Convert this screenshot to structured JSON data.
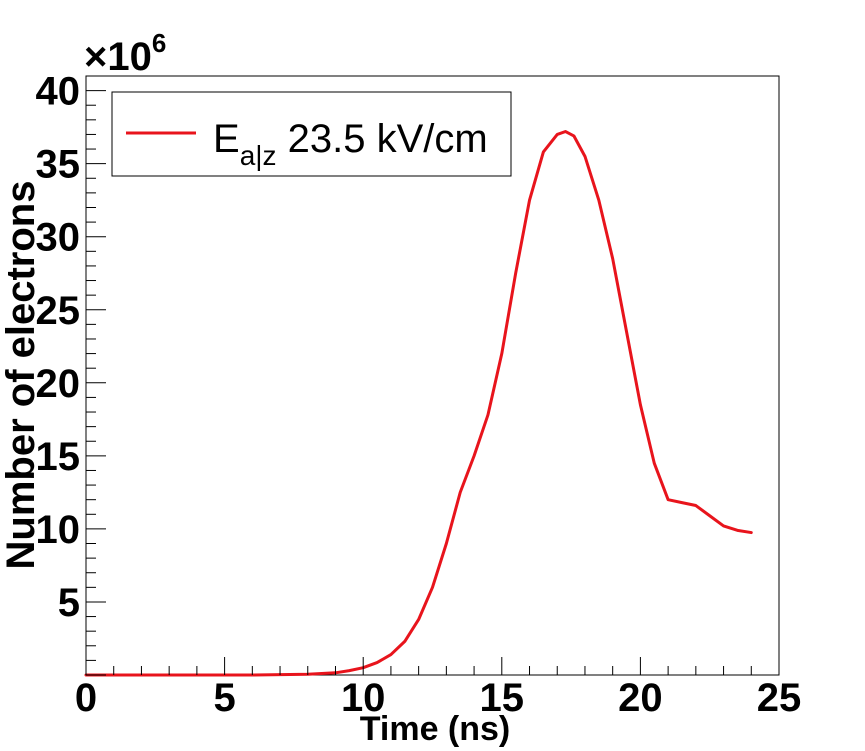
{
  "chart_data": {
    "type": "line",
    "xlabel": "Time (ns)",
    "ylabel": "Number of electrons",
    "y_multiplier": {
      "prefix": "×10",
      "exponent": "6"
    },
    "xlim": [
      0,
      25
    ],
    "ylim": [
      0,
      41
    ],
    "xticks": [
      0,
      5,
      10,
      15,
      20,
      25
    ],
    "yticks": [
      5,
      10,
      15,
      20,
      25,
      30,
      35,
      40
    ],
    "grid": false,
    "legend_position": "top-left",
    "colors": {
      "series": "#e8141c",
      "axes": "#000000"
    },
    "legend": {
      "main": "E",
      "subscript": "a|z",
      "suffix": " 23.5 kV/cm"
    },
    "series": [
      {
        "name": "E_a|z 23.5 kV/cm",
        "x": [
          0,
          2,
          4,
          6,
          8,
          9,
          9.5,
          10,
          10.5,
          11,
          11.5,
          12,
          12.5,
          13,
          13.5,
          14,
          14.5,
          15,
          15.5,
          16,
          16.5,
          17,
          17.3,
          17.6,
          18,
          18.5,
          19,
          19.5,
          20,
          20.5,
          21,
          21.5,
          22,
          22.5,
          23,
          23.5,
          24
        ],
        "y": [
          0,
          0,
          0,
          0,
          0.05,
          0.15,
          0.3,
          0.5,
          0.85,
          1.4,
          2.3,
          3.8,
          6.0,
          9.0,
          12.5,
          15.0,
          17.8,
          22.0,
          27.5,
          32.5,
          35.8,
          37.0,
          37.2,
          36.9,
          35.5,
          32.5,
          28.5,
          23.5,
          18.5,
          14.5,
          12.0,
          11.8,
          11.6,
          10.9,
          10.2,
          9.9,
          9.75
        ]
      }
    ]
  }
}
